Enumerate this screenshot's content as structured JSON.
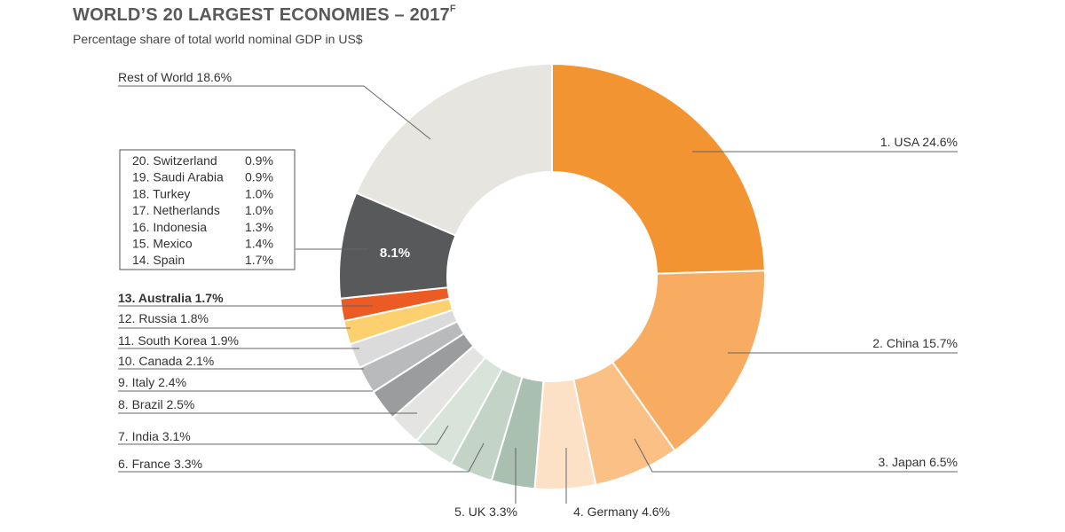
{
  "chart_data": {
    "type": "pie",
    "title": "WORLD’S 20 LARGEST ECONOMIES – 2017",
    "title_superscript": "F",
    "subtitle": "Percentage share of total world nominal GDP in US$",
    "unit": "%",
    "slices": [
      {
        "label": "1. USA",
        "value": 24.6,
        "value_text": "24.6%",
        "color": "#f39433"
      },
      {
        "label": "2. China",
        "value": 15.7,
        "value_text": "15.7%",
        "color": "#f7ac61"
      },
      {
        "label": "3. Japan",
        "value": 6.5,
        "value_text": "6.5%",
        "color": "#fac086"
      },
      {
        "label": "4. Germany",
        "value": 4.6,
        "value_text": "4.6%",
        "color": "#fde1c6"
      },
      {
        "label": "5. UK",
        "value": 3.3,
        "value_text": "3.3%",
        "color": "#a9bfaf"
      },
      {
        "label": "6. France",
        "value": 3.3,
        "value_text": "3.3%",
        "color": "#c3d4c7"
      },
      {
        "label": "7. India",
        "value": 3.1,
        "value_text": "3.1%",
        "color": "#d8e3da"
      },
      {
        "label": "8. Brazil",
        "value": 2.5,
        "value_text": "2.5%",
        "color": "#e4e5e3"
      },
      {
        "label": "9. Italy",
        "value": 2.4,
        "value_text": "2.4%",
        "color": "#9a9c9d"
      },
      {
        "label": "10. Canada",
        "value": 2.1,
        "value_text": "2.1%",
        "color": "#b8babb"
      },
      {
        "label": "11. South Korea",
        "value": 1.9,
        "value_text": "1.9%",
        "color": "#dadbda"
      },
      {
        "label": "12. Russia",
        "value": 1.8,
        "value_text": "1.8%",
        "color": "#fcd06f"
      },
      {
        "label": "13. Australia",
        "value": 1.7,
        "value_text": "1.7%",
        "color": "#ec5b24",
        "highlight": true
      },
      {
        "label": "14–20 combined",
        "value": 8.1,
        "value_text": "8.1%",
        "color": "#58595b",
        "inner_label": true
      },
      {
        "label": "Rest of World",
        "value": 18.6,
        "value_text": "18.6%",
        "color": "#e6e5e0"
      }
    ],
    "grouped_breakdown": [
      {
        "label": "20.  Switzerland",
        "value_text": "0.9%"
      },
      {
        "label": "19.  Saudi Arabia",
        "value_text": "0.9%"
      },
      {
        "label": "18.  Turkey",
        "value_text": "1.0%"
      },
      {
        "label": "17.  Netherlands",
        "value_text": "1.0%"
      },
      {
        "label": "16.  Indonesia",
        "value_text": "1.3%"
      },
      {
        "label": "15.  Mexico",
        "value_text": "1.4%"
      },
      {
        "label": "14.  Spain",
        "value_text": "1.7%"
      }
    ],
    "highlight_color": "#e8632b"
  }
}
